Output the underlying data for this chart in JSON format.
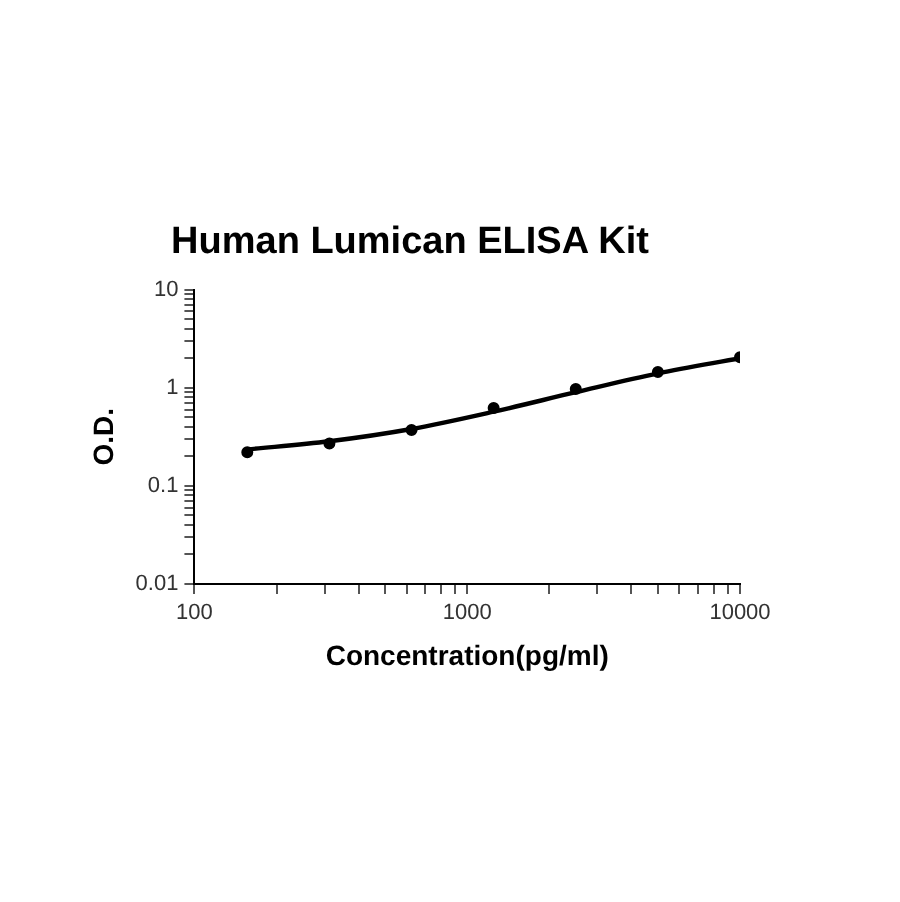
{
  "chart_data": {
    "type": "scatter",
    "title": "Human Lumican ELISA Kit",
    "xlabel": "Concentration(pg/ml)",
    "ylabel": "O.D.",
    "log": "xy",
    "grid": false,
    "legend": false,
    "marker": "circle",
    "xlim": [
      100,
      10000
    ],
    "ylim": [
      0.01,
      10
    ],
    "xticks": [
      100,
      {
        "value": 200,
        "label": null
      },
      {
        "value": 300,
        "label": null
      },
      {
        "value": 400,
        "label": null
      },
      {
        "value": 500,
        "label": null
      },
      {
        "value": 600,
        "label": null
      },
      {
        "value": 700,
        "label": null
      },
      {
        "value": 800,
        "label": null
      },
      {
        "value": 900,
        "label": null
      },
      1000,
      {
        "value": 2000,
        "label": null
      },
      {
        "value": 3000,
        "label": null
      },
      {
        "value": 4000,
        "label": null
      },
      {
        "value": 5000,
        "label": null
      },
      {
        "value": 6000,
        "label": null
      },
      {
        "value": 7000,
        "label": null
      },
      {
        "value": 8000,
        "label": null
      },
      {
        "value": 9000,
        "label": null
      },
      10000
    ],
    "yticks": [
      0.01,
      {
        "value": 0.02,
        "label": null
      },
      {
        "value": 0.03,
        "label": null
      },
      {
        "value": 0.04,
        "label": null
      },
      {
        "value": 0.05,
        "label": null
      },
      {
        "value": 0.06,
        "label": null
      },
      {
        "value": 0.07,
        "label": null
      },
      {
        "value": 0.08,
        "label": null
      },
      {
        "value": 0.09,
        "label": null
      },
      0.1,
      {
        "value": 0.2,
        "label": null
      },
      {
        "value": 0.3,
        "label": null
      },
      {
        "value": 0.4,
        "label": null
      },
      {
        "value": 0.5,
        "label": null
      },
      {
        "value": 0.6,
        "label": null
      },
      {
        "value": 0.7,
        "label": null
      },
      {
        "value": 0.8,
        "label": null
      },
      {
        "value": 0.9,
        "label": null
      },
      1,
      {
        "value": 2,
        "label": null
      },
      {
        "value": 3,
        "label": null
      },
      {
        "value": 4,
        "label": null
      },
      {
        "value": 5,
        "label": null
      },
      {
        "value": 6,
        "label": null
      },
      {
        "value": 7,
        "label": null
      },
      {
        "value": 8,
        "label": null
      },
      {
        "value": 9,
        "label": null
      },
      10
    ],
    "series": [
      {
        "color": "#000000",
        "x": [
          156.25,
          312.5,
          625,
          1250,
          2500,
          5000,
          10000
        ],
        "values": [
          0.22,
          0.27,
          0.37,
          0.62,
          0.97,
          1.45,
          2.05
        ]
      },
      {
        "type": "line",
        "color": "#000000",
        "marker": "none",
        "line_style": "solid",
        "x": [
          156.25,
          312.5,
          625,
          1250,
          2500,
          5000,
          10000
        ],
        "values": [
          0.235,
          0.285,
          0.38,
          0.57,
          0.9,
          1.4,
          2.0
        ]
      }
    ]
  }
}
